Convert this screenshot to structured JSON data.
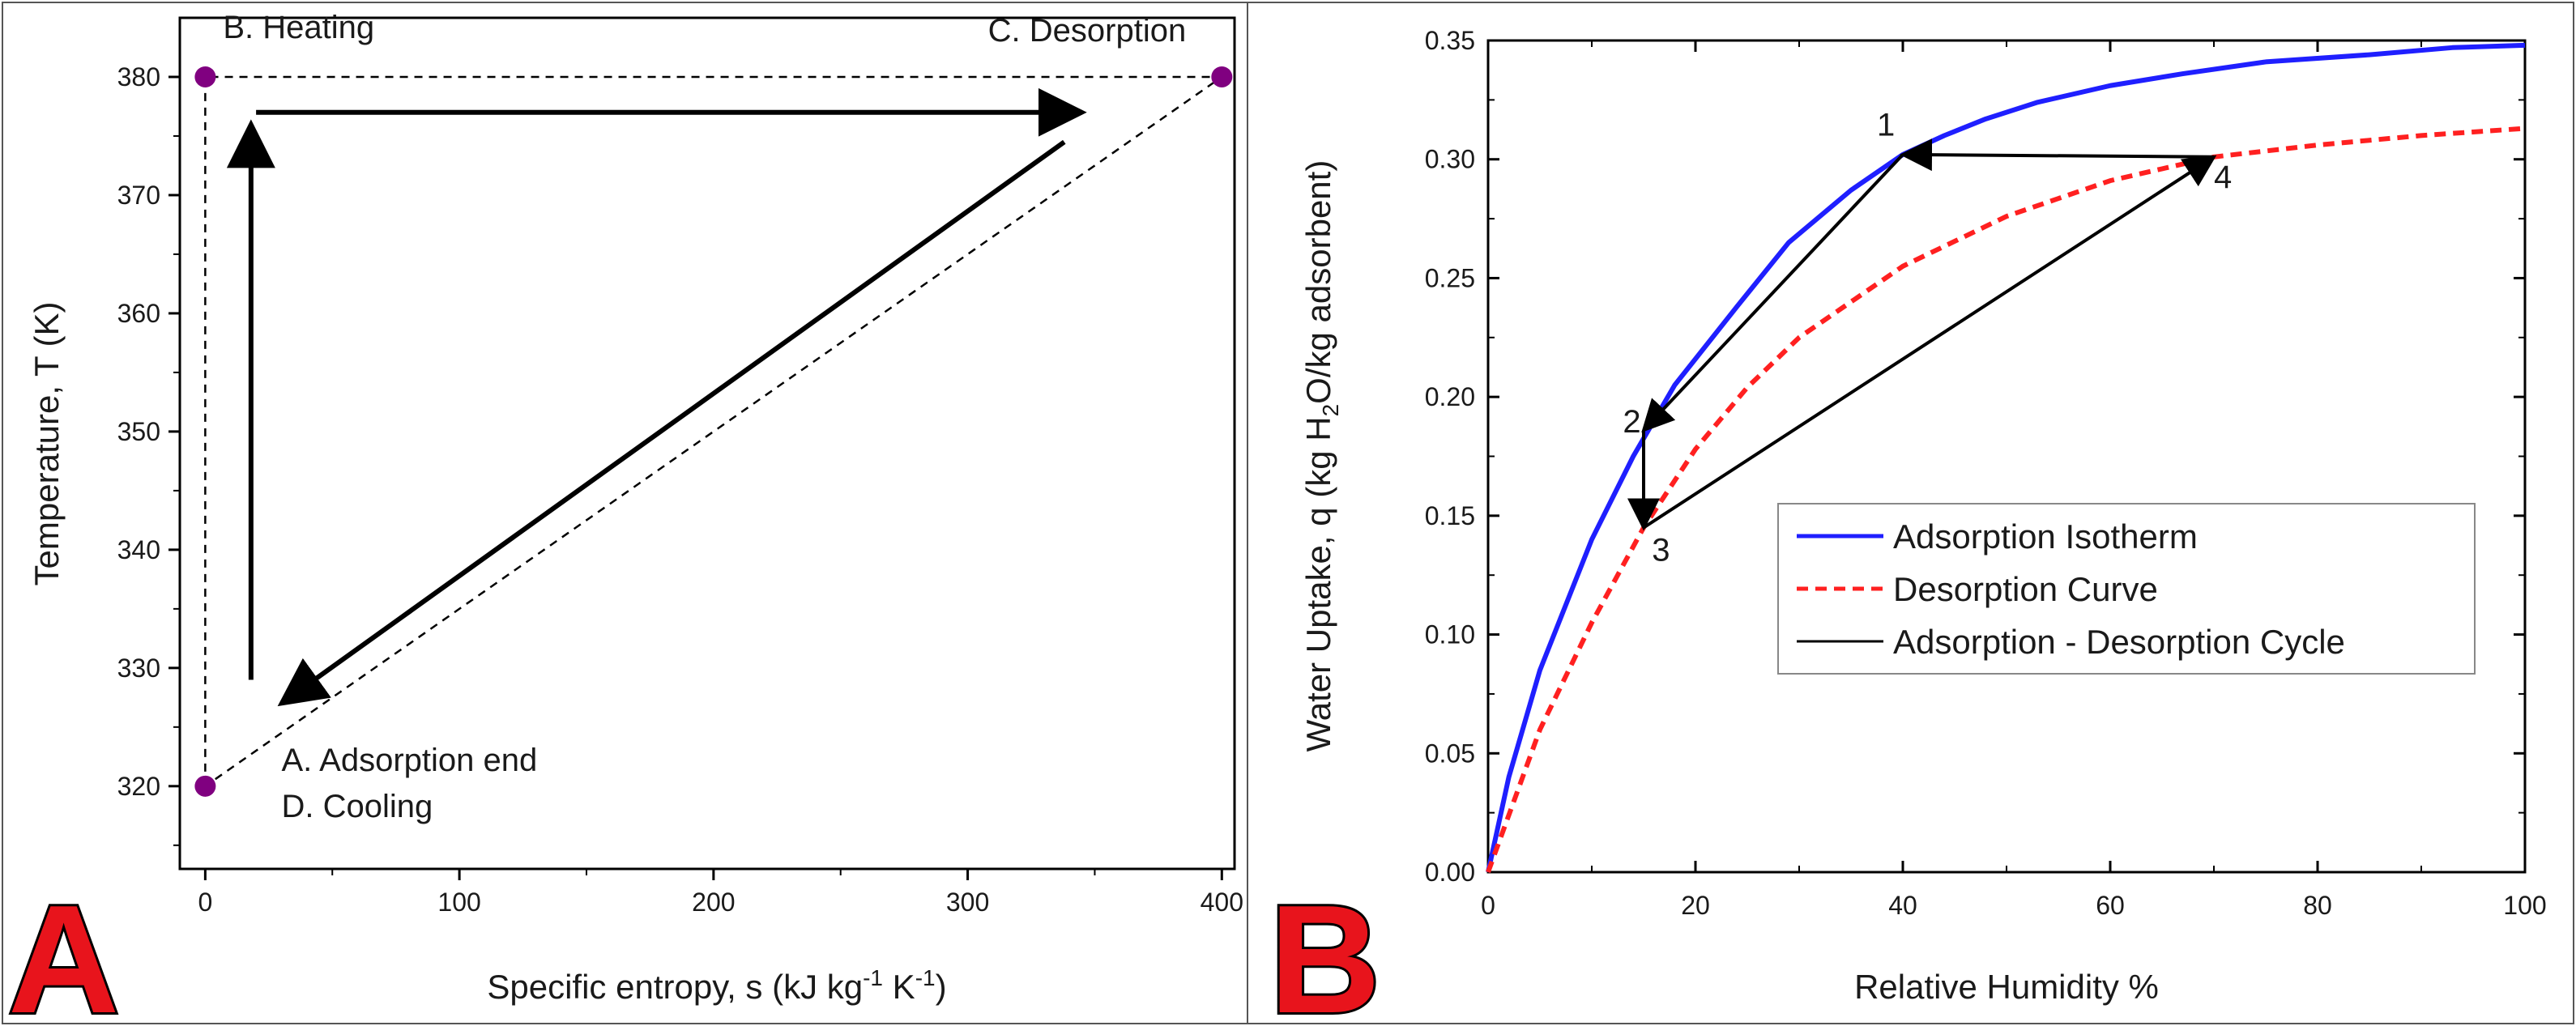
{
  "chart_data": [
    {
      "type": "line",
      "panel": "A",
      "xlabel_main": "Specific entropy, s (kJ kg",
      "xlabel_sup1": "-1",
      "xlabel_mid": " K",
      "xlabel_sup2": "-1",
      "xlabel_end": ")",
      "ylabel": "Temperature, T (K)",
      "xlim": [
        -10,
        405
      ],
      "ylim": [
        313,
        385
      ],
      "xticks": [
        0,
        100,
        200,
        300,
        400
      ],
      "yticks": [
        320,
        330,
        340,
        350,
        360,
        370,
        380
      ],
      "dashed_cycle": [
        [
          0,
          320
        ],
        [
          0,
          380
        ],
        [
          400,
          380
        ],
        [
          0,
          320
        ]
      ],
      "points": [
        {
          "s": 0,
          "T": 320,
          "color": "#800080"
        },
        {
          "s": 0,
          "T": 380,
          "color": "#800080"
        },
        {
          "s": 400,
          "T": 380,
          "color": "#800080"
        }
      ],
      "arrows": [
        {
          "from": [
            18,
            329
          ],
          "to": [
            18,
            376
          ]
        },
        {
          "from": [
            20,
            377
          ],
          "to": [
            345,
            377
          ]
        },
        {
          "from": [
            338,
            374.5
          ],
          "to": [
            30,
            327
          ]
        }
      ],
      "annotations": [
        {
          "text": "B. Heating",
          "s": 7,
          "T": 383.3
        },
        {
          "text": "C. Desorption",
          "s": 308,
          "T": 383
        },
        {
          "text": "A. Adsorption end",
          "s": 30,
          "T": 321.3
        },
        {
          "text": "D. Cooling",
          "s": 30,
          "T": 317.4
        }
      ]
    },
    {
      "type": "line",
      "panel": "B",
      "xlabel": "Relative Humidity %",
      "ylabel_main": "Water Uptake, q (kg H",
      "ylabel_sub": "2",
      "ylabel_end": "O/kg adsorbent)",
      "xlim": [
        0,
        100
      ],
      "ylim": [
        0,
        0.35
      ],
      "xticks": [
        0,
        20,
        40,
        60,
        80,
        100
      ],
      "yticks": [
        "0.00",
        "0.05",
        "0.10",
        "0.15",
        "0.20",
        "0.25",
        "0.30",
        "0.35"
      ],
      "series": [
        {
          "name": "Adsorption Isotherm",
          "color": "#1f1fff",
          "style": "solid",
          "x": [
            0,
            2,
            5,
            10,
            14,
            18,
            24,
            29,
            35,
            40,
            44,
            48,
            53,
            60,
            67,
            75,
            85,
            93,
            100
          ],
          "y": [
            0,
            0.04,
            0.085,
            0.14,
            0.175,
            0.205,
            0.238,
            0.265,
            0.287,
            0.302,
            0.31,
            0.317,
            0.324,
            0.331,
            0.336,
            0.341,
            0.344,
            0.347,
            0.348
          ]
        },
        {
          "name": "Desorption Curve",
          "color": "#ff2020",
          "style": "dashed",
          "x": [
            0,
            5,
            10,
            15,
            20,
            25,
            30,
            40,
            50,
            60,
            70,
            80,
            90,
            100
          ],
          "y": [
            0,
            0.06,
            0.105,
            0.145,
            0.178,
            0.204,
            0.225,
            0.255,
            0.276,
            0.291,
            0.301,
            0.306,
            0.31,
            0.313
          ]
        },
        {
          "name": "Adsorption - Desorption Cycle",
          "color": "#000000",
          "style": "solid",
          "x": [
            40,
            15,
            15,
            70,
            40
          ],
          "y": [
            0.302,
            0.186,
            0.145,
            0.301,
            0.302
          ]
        }
      ],
      "cycle_points": [
        {
          "label": "1",
          "x": 40,
          "y": 0.302
        },
        {
          "label": "2",
          "x": 15,
          "y": 0.186
        },
        {
          "label": "3",
          "x": 15,
          "y": 0.145
        },
        {
          "label": "4",
          "x": 70,
          "y": 0.301
        }
      ],
      "point_label_positions": [
        {
          "label": "1",
          "x": 37.5,
          "y": 0.31
        },
        {
          "label": "2",
          "x": 13,
          "y": 0.185
        },
        {
          "label": "3",
          "x": 15.8,
          "y": 0.131
        },
        {
          "label": "4",
          "x": 70,
          "y": 0.288
        }
      ],
      "legend_position": "center-right"
    }
  ],
  "panel_labels": [
    "A",
    "B"
  ]
}
